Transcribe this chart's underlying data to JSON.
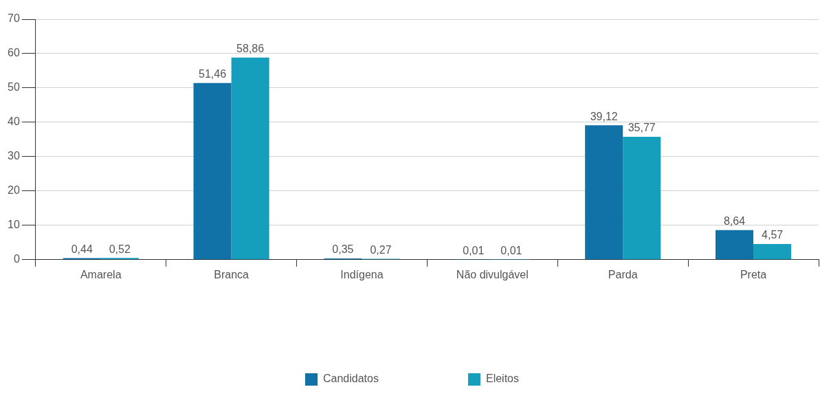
{
  "chart_data": {
    "type": "bar",
    "categories": [
      "Amarela",
      "Branca",
      "Indígena",
      "Não divulgável",
      "Parda",
      "Preta"
    ],
    "series": [
      {
        "name": "Candidatos",
        "color": "#1172a8",
        "values": [
          0.44,
          51.46,
          0.35,
          0.01,
          39.12,
          8.64
        ],
        "value_labels": [
          "0,44",
          "51,46",
          "0,35",
          "0,01",
          "39,12",
          "8,64"
        ]
      },
      {
        "name": "Eleitos",
        "color": "#159fbd",
        "values": [
          0.52,
          58.86,
          0.27,
          0.01,
          35.77,
          4.57
        ],
        "value_labels": [
          "0,52",
          "58,86",
          "0,27",
          "0,01",
          "35,77",
          "4,57"
        ]
      }
    ],
    "ylim": [
      0,
      70
    ],
    "yticks": [
      0,
      10,
      20,
      30,
      40,
      50,
      60,
      70
    ],
    "grid": "y",
    "legend": "bottom"
  }
}
